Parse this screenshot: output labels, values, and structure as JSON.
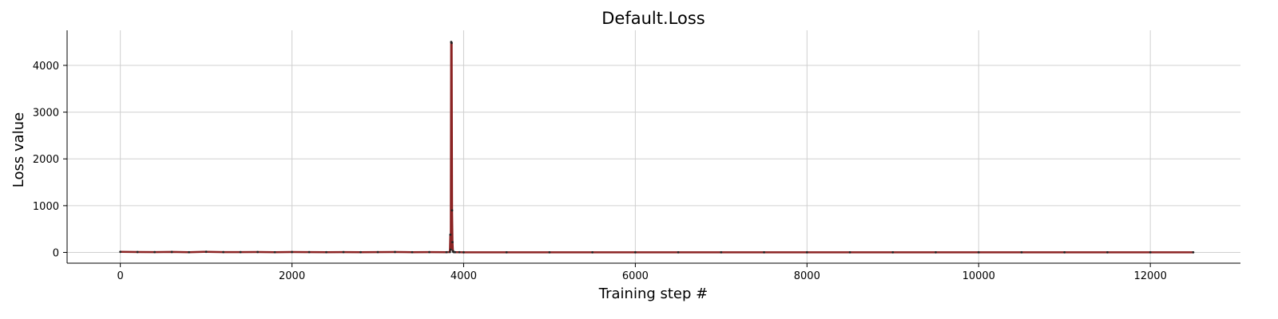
{
  "chart_data": {
    "type": "line",
    "title": "Default.Loss",
    "xlabel": "Training step #",
    "ylabel": "Loss value",
    "xlim": [
      -620,
      13050
    ],
    "ylim": [
      -230,
      4750
    ],
    "x_ticks": [
      0,
      2000,
      4000,
      6000,
      8000,
      10000,
      12000
    ],
    "y_ticks": [
      0,
      1000,
      2000,
      3000,
      4000
    ],
    "grid": true,
    "line_color": "#8b2323",
    "series": [
      {
        "x": [
          0,
          200,
          400,
          600,
          800,
          1000,
          1200,
          1400,
          1600,
          1800,
          2000,
          2200,
          2400,
          2600,
          2800,
          3000,
          3200,
          3400,
          3600,
          3800,
          3840,
          3845,
          3850,
          3855,
          3860,
          3865,
          3870,
          3875,
          3880,
          3890,
          3900,
          3950,
          4000,
          4500,
          5000,
          5500,
          6000,
          6500,
          7000,
          7500,
          8000,
          8500,
          9000,
          9500,
          10000,
          10500,
          11000,
          11500,
          12000,
          12500
        ],
        "y": [
          12,
          8,
          6,
          10,
          5,
          14,
          7,
          6,
          9,
          5,
          8,
          6,
          5,
          7,
          4,
          6,
          9,
          5,
          6,
          4,
          8,
          380,
          60,
          4500,
          4480,
          900,
          220,
          30,
          10,
          6,
          5,
          4,
          3,
          3,
          2,
          3,
          2,
          2,
          3,
          2,
          2,
          2,
          3,
          2,
          2,
          2,
          2,
          2,
          2,
          2
        ]
      }
    ]
  }
}
